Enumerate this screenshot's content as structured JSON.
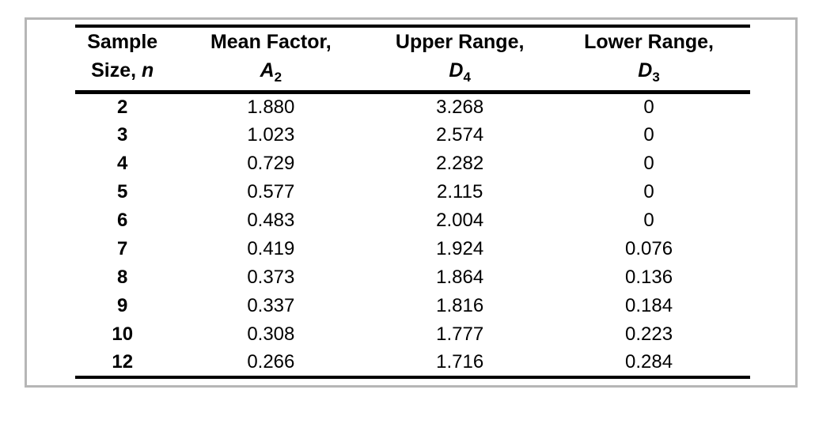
{
  "frame": {
    "border_color": "#b6b6b6",
    "background": "#ffffff",
    "rule_color": "#000000"
  },
  "table": {
    "columns": [
      {
        "line1": "Sample",
        "line2_text": "Size, ",
        "symbol": "n",
        "subscript": ""
      },
      {
        "line1": "Mean Factor,",
        "line2_text": "",
        "symbol": "A",
        "subscript": "2"
      },
      {
        "line1": "Upper Range,",
        "line2_text": "",
        "symbol": "D",
        "subscript": "4"
      },
      {
        "line1": "Lower Range,",
        "line2_text": "",
        "symbol": "D",
        "subscript": "3"
      }
    ],
    "rows": [
      {
        "n": "2",
        "a2": "1.880",
        "d4": "3.268",
        "d3": "0"
      },
      {
        "n": "3",
        "a2": "1.023",
        "d4": "2.574",
        "d3": "0"
      },
      {
        "n": "4",
        "a2": "0.729",
        "d4": "2.282",
        "d3": "0"
      },
      {
        "n": "5",
        "a2": "0.577",
        "d4": "2.115",
        "d3": "0"
      },
      {
        "n": "6",
        "a2": "0.483",
        "d4": "2.004",
        "d3": "0"
      },
      {
        "n": "7",
        "a2": "0.419",
        "d4": "1.924",
        "d3": "0.076"
      },
      {
        "n": "8",
        "a2": "0.373",
        "d4": "1.864",
        "d3": "0.136"
      },
      {
        "n": "9",
        "a2": "0.337",
        "d4": "1.816",
        "d3": "0.184"
      },
      {
        "n": "10",
        "a2": "0.308",
        "d4": "1.777",
        "d3": "0.223"
      },
      {
        "n": "12",
        "a2": "0.266",
        "d4": "1.716",
        "d3": "0.284"
      }
    ]
  }
}
